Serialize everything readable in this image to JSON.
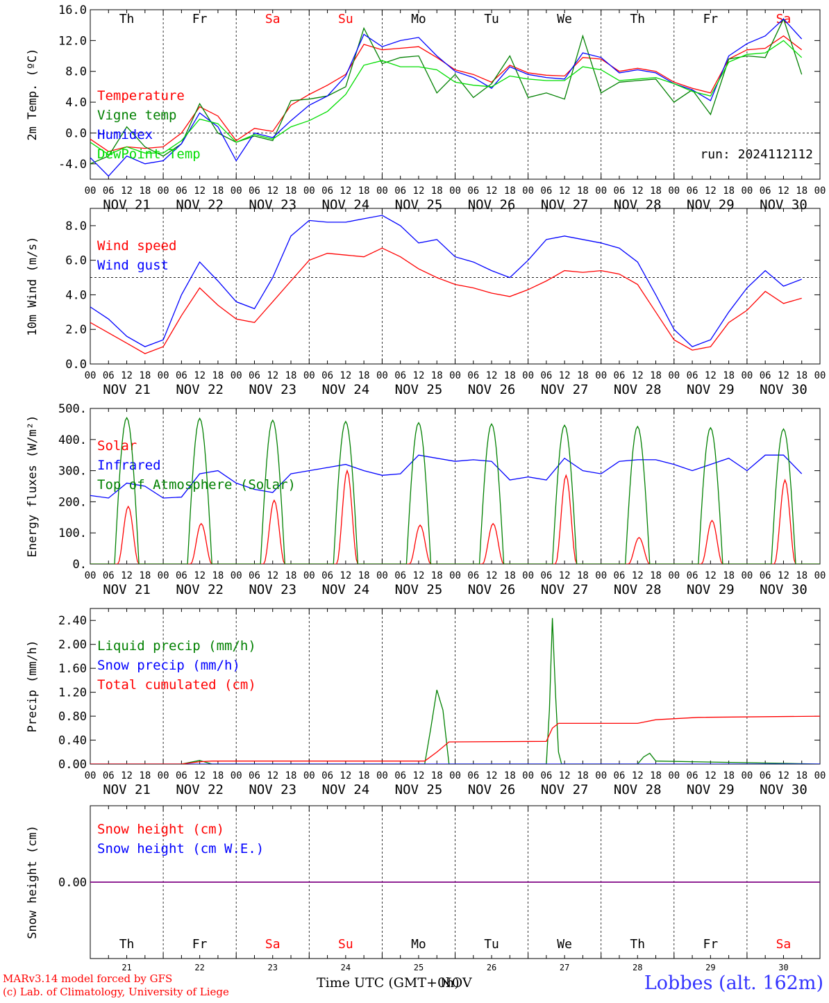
{
  "chart_data": [
    {
      "id": "temp",
      "type": "line",
      "ylabel": "2m Temp. (ºC)",
      "ylim": [
        -6,
        16
      ],
      "yticks": [
        -4,
        0,
        4,
        8,
        12,
        16
      ],
      "ytick_labels": [
        "-4.0",
        "0.0",
        "4.0",
        "8.0",
        "12.0",
        "16.0"
      ],
      "ref_line": 0,
      "x_unit": "hours since Nov 21 00 UTC",
      "weekday_labels": true,
      "date_labels": true,
      "run_label": "run: 2024112112",
      "series": [
        {
          "name": "Temperature",
          "color": "#ff0000",
          "x": [
            0,
            6,
            12,
            18,
            24,
            30,
            36,
            42,
            48,
            54,
            60,
            66,
            72,
            78,
            84,
            90,
            96,
            102,
            108,
            114,
            120,
            126,
            132,
            138,
            144,
            150,
            156,
            162,
            168,
            174,
            180,
            186,
            192,
            198,
            204,
            210,
            216,
            222,
            228,
            234
          ],
          "y": [
            -0.8,
            -2.4,
            -1.8,
            -2.0,
            -1.8,
            0.0,
            3.4,
            2.2,
            -1.0,
            0.6,
            0.2,
            3.6,
            5.0,
            6.2,
            7.6,
            11.5,
            10.8,
            11.0,
            11.2,
            9.8,
            8.2,
            7.6,
            6.6,
            8.8,
            7.8,
            7.5,
            7.4,
            9.8,
            9.6,
            8.0,
            8.4,
            8.0,
            6.6,
            5.8,
            5.2,
            9.6,
            10.8,
            11.0,
            12.6,
            10.8
          ]
        },
        {
          "name": "Vigne temp",
          "color": "#008000",
          "x": [
            0,
            6,
            12,
            18,
            24,
            30,
            36,
            42,
            48,
            54,
            60,
            66,
            72,
            78,
            84,
            90,
            96,
            102,
            108,
            114,
            120,
            126,
            132,
            138,
            144,
            150,
            156,
            162,
            168,
            174,
            180,
            186,
            192,
            198,
            204,
            210,
            216,
            222,
            228,
            234
          ],
          "y": [
            -4.0,
            -3.0,
            0.8,
            -1.8,
            -3.0,
            -1.4,
            3.8,
            0.0,
            -1.2,
            -0.4,
            -1.0,
            4.2,
            4.4,
            4.8,
            6.0,
            13.6,
            9.0,
            9.8,
            10.0,
            5.2,
            7.6,
            4.6,
            6.4,
            10.0,
            4.6,
            5.2,
            4.4,
            12.6,
            5.2,
            6.6,
            6.8,
            7.0,
            4.0,
            5.6,
            2.4,
            9.6,
            10.0,
            9.8,
            14.8,
            7.6
          ]
        },
        {
          "name": "Humidex",
          "color": "#0000ff",
          "x": [
            0,
            6,
            12,
            18,
            24,
            30,
            36,
            42,
            48,
            54,
            60,
            66,
            72,
            78,
            84,
            90,
            96,
            102,
            108,
            114,
            120,
            126,
            132,
            138,
            144,
            150,
            156,
            162,
            168,
            174,
            180,
            186,
            192,
            198,
            204,
            210,
            216,
            222,
            228,
            234
          ],
          "y": [
            -3.2,
            -5.6,
            -3.0,
            -4.0,
            -3.6,
            -1.4,
            2.6,
            0.8,
            -3.6,
            0.0,
            -0.6,
            1.6,
            3.6,
            4.8,
            7.4,
            12.8,
            11.2,
            12.0,
            12.4,
            10.0,
            8.0,
            7.2,
            5.8,
            8.6,
            7.6,
            7.2,
            7.0,
            10.4,
            9.8,
            7.8,
            8.2,
            7.8,
            6.4,
            5.6,
            4.2,
            10.0,
            11.6,
            12.6,
            14.8,
            12.2
          ]
        },
        {
          "name": "DewPoint Temp",
          "color": "#00dd00",
          "x": [
            0,
            6,
            12,
            18,
            24,
            30,
            36,
            42,
            48,
            54,
            60,
            66,
            72,
            78,
            84,
            90,
            96,
            102,
            108,
            114,
            120,
            126,
            132,
            138,
            144,
            150,
            156,
            162,
            168,
            174,
            180,
            186,
            192,
            198,
            204,
            210,
            216,
            222,
            228,
            234
          ],
          "y": [
            -1.2,
            -2.8,
            -1.8,
            -2.6,
            -2.6,
            -1.0,
            1.8,
            1.2,
            -1.2,
            -0.2,
            -0.8,
            0.8,
            1.6,
            2.8,
            5.0,
            8.8,
            9.4,
            8.6,
            8.6,
            8.2,
            6.6,
            6.2,
            6.0,
            7.4,
            7.0,
            6.8,
            6.8,
            8.6,
            8.2,
            6.8,
            7.0,
            7.2,
            6.4,
            5.4,
            4.8,
            9.2,
            10.2,
            10.4,
            12.0,
            9.8
          ]
        }
      ]
    },
    {
      "id": "wind",
      "type": "line",
      "ylabel": "10m Wind (m/s)",
      "ylim": [
        0,
        9
      ],
      "yticks": [
        0,
        2,
        4,
        6,
        8
      ],
      "ytick_labels": [
        "0.0",
        "2.0",
        "4.0",
        "6.0",
        "8.0"
      ],
      "ref_line": 5,
      "date_labels": true,
      "series": [
        {
          "name": "Wind speed",
          "color": "#ff0000",
          "x": [
            0,
            6,
            12,
            18,
            24,
            30,
            36,
            42,
            48,
            54,
            60,
            66,
            72,
            78,
            84,
            90,
            96,
            102,
            108,
            114,
            120,
            126,
            132,
            138,
            144,
            150,
            156,
            162,
            168,
            174,
            180,
            186,
            192,
            198,
            204,
            210,
            216,
            222,
            228,
            234
          ],
          "y": [
            2.4,
            1.8,
            1.2,
            0.6,
            1.0,
            2.8,
            4.4,
            3.4,
            2.6,
            2.4,
            3.6,
            4.8,
            6.0,
            6.4,
            6.3,
            6.2,
            6.7,
            6.2,
            5.5,
            5.0,
            4.6,
            4.4,
            4.1,
            3.9,
            4.3,
            4.8,
            5.4,
            5.3,
            5.4,
            5.2,
            4.6,
            3.0,
            1.4,
            0.8,
            1.0,
            2.4,
            3.1,
            4.2,
            3.5,
            3.8
          ]
        },
        {
          "name": "Wind gust",
          "color": "#0000ff",
          "x": [
            0,
            6,
            12,
            18,
            24,
            30,
            36,
            42,
            48,
            54,
            60,
            66,
            72,
            78,
            84,
            90,
            96,
            102,
            108,
            114,
            120,
            126,
            132,
            138,
            144,
            150,
            156,
            162,
            168,
            174,
            180,
            186,
            192,
            198,
            204,
            210,
            216,
            222,
            228,
            234
          ],
          "y": [
            3.3,
            2.6,
            1.6,
            1.0,
            1.4,
            4.0,
            5.9,
            4.8,
            3.6,
            3.2,
            5.0,
            7.4,
            8.3,
            8.2,
            8.2,
            8.4,
            8.6,
            8.0,
            7.0,
            7.2,
            6.2,
            5.9,
            5.4,
            5.0,
            6.0,
            7.2,
            7.4,
            7.2,
            7.0,
            6.7,
            5.9,
            4.0,
            2.0,
            1.0,
            1.4,
            3.0,
            4.4,
            5.4,
            4.5,
            4.9
          ]
        }
      ]
    },
    {
      "id": "energy",
      "type": "line",
      "ylabel": "Energy fluxes (W/m²)",
      "ylim": [
        0,
        500
      ],
      "yticks": [
        0,
        100,
        200,
        300,
        400,
        500
      ],
      "ytick_labels": [
        "0.",
        "100.",
        "200.",
        "300.",
        "400.",
        "500."
      ],
      "date_labels": true,
      "series": [
        {
          "name": "Solar",
          "color": "#ff0000",
          "peaks": [
            185,
            130,
            205,
            300,
            125,
            130,
            285,
            85,
            140,
            270
          ],
          "peak_shape": "solar"
        },
        {
          "name": "Infrared",
          "color": "#0000ff",
          "x": [
            0,
            6,
            12,
            18,
            24,
            30,
            36,
            42,
            48,
            54,
            60,
            66,
            72,
            78,
            84,
            90,
            96,
            102,
            108,
            114,
            120,
            126,
            132,
            138,
            144,
            150,
            156,
            162,
            168,
            174,
            180,
            186,
            192,
            198,
            204,
            210,
            216,
            222,
            228,
            234
          ],
          "y": [
            220,
            212,
            260,
            250,
            212,
            215,
            290,
            300,
            260,
            240,
            230,
            290,
            300,
            310,
            320,
            300,
            285,
            290,
            350,
            340,
            330,
            335,
            330,
            270,
            280,
            270,
            340,
            300,
            290,
            330,
            335,
            335,
            320,
            300,
            320,
            340,
            300,
            350,
            350,
            290
          ]
        },
        {
          "name": "Top of Atmosphere (Solar)",
          "color": "#008000",
          "peaks": [
            470,
            468,
            462,
            458,
            454,
            450,
            446,
            442,
            438,
            434
          ],
          "peak_shape": "toa"
        }
      ]
    },
    {
      "id": "precip",
      "type": "line",
      "ylabel": "Precip (mm/h)",
      "ylim": [
        0,
        2.6
      ],
      "yticks": [
        0,
        0.4,
        0.8,
        1.2,
        1.6,
        2.0,
        2.4
      ],
      "ytick_labels": [
        "0.00",
        "0.40",
        "0.80",
        "1.20",
        "1.60",
        "2.00",
        "2.40"
      ],
      "date_labels": true,
      "series": [
        {
          "name": "Liquid precip (mm/h)",
          "color": "#008000",
          "x": [
            0,
            30,
            36,
            40,
            110,
            112,
            114,
            116,
            118,
            150,
            151,
            152,
            153,
            154,
            155,
            180,
            182,
            184,
            186,
            240
          ],
          "y": [
            0,
            0,
            0.06,
            0,
            0,
            0.6,
            1.24,
            0.9,
            0,
            0,
            0.9,
            2.44,
            1.2,
            0.2,
            0,
            0,
            0.12,
            0.18,
            0.05,
            0
          ]
        },
        {
          "name": "Snow precip (mm/h)",
          "color": "#0000ff",
          "x": [
            0,
            240
          ],
          "y": [
            0,
            0
          ]
        },
        {
          "name": "Total cumulated (cm)",
          "color": "#ff0000",
          "x": [
            0,
            30,
            36,
            40,
            110,
            114,
            118,
            150,
            152,
            154,
            180,
            186,
            200,
            240
          ],
          "y": [
            0,
            0,
            0.04,
            0.05,
            0.05,
            0.2,
            0.37,
            0.38,
            0.6,
            0.68,
            0.68,
            0.74,
            0.78,
            0.8
          ]
        }
      ]
    },
    {
      "id": "snow",
      "type": "line",
      "ylabel": "Snow height (cm)",
      "ylim": [
        -1,
        1
      ],
      "yticks": [
        0
      ],
      "ytick_labels": [
        "0.00"
      ],
      "weekday_labels": true,
      "series": [
        {
          "name": "Snow height (cm)",
          "color": "#ff0000",
          "x": [
            0,
            240
          ],
          "y": [
            0,
            0
          ]
        },
        {
          "name": "Snow height (cm W.E.)",
          "color": "#0000ff",
          "x": [
            0,
            240
          ],
          "y": [
            0,
            0
          ]
        }
      ],
      "bottom_day_numbers": [
        "21",
        "22",
        "23",
        "24",
        "25",
        "26",
        "27",
        "28",
        "29",
        "30"
      ]
    }
  ],
  "axis": {
    "hour_tick_labels": [
      "00",
      "06",
      "12",
      "18"
    ],
    "end_hour_label": "00",
    "date_labels": [
      "NOV 21",
      "NOV 22",
      "NOV 23",
      "NOV 24",
      "NOV 25",
      "NOV 26",
      "NOV 27",
      "NOV 28",
      "NOV 29",
      "NOV 30"
    ],
    "weekday_labels": [
      "Th",
      "Fr",
      "Sa",
      "Su",
      "Mo",
      "Tu",
      "We",
      "Th",
      "Fr",
      "Sa"
    ],
    "weekend_days": [
      2,
      3,
      9
    ],
    "xlabel": "Time UTC (GMT+0h)",
    "xlabel_overlay": "NOV"
  },
  "footer": {
    "credit_line_1": "MARv3.14 model forced by GFS",
    "credit_line_2": "(c) Lab. of Climatology, University of Liege",
    "station": "Lobbes (alt. 162m)"
  },
  "colors": {
    "weekday": "#000000",
    "weekend": "#ff0000",
    "credit": "#ff0000",
    "station": "#3333ff"
  }
}
